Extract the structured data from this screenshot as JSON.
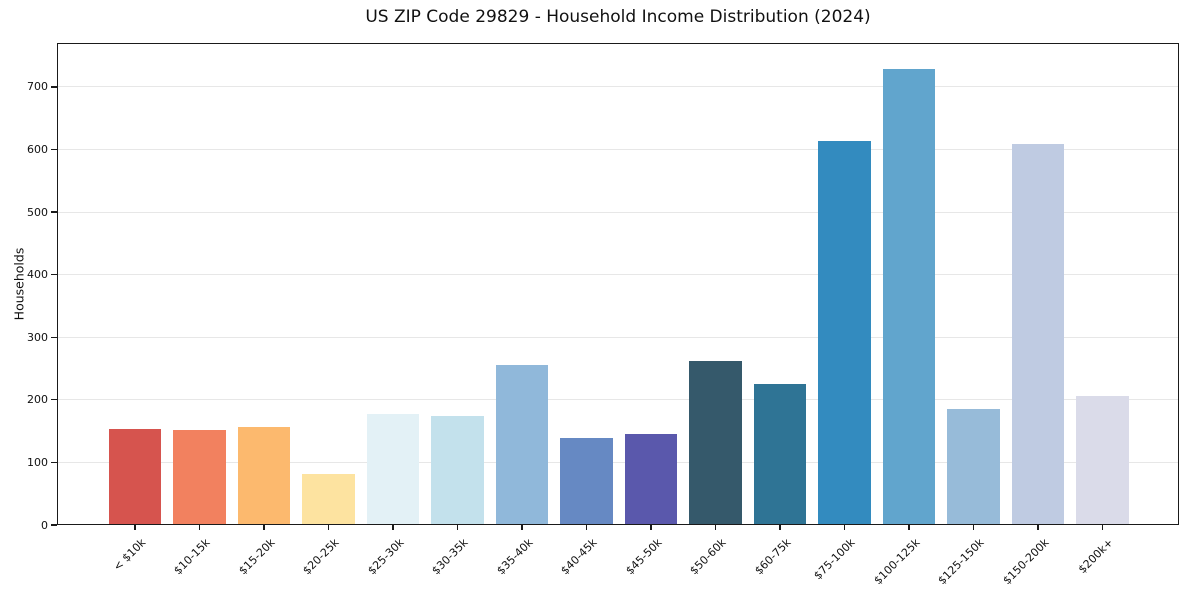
{
  "chart_data": {
    "type": "bar",
    "title": "US ZIP Code 29829 - Household Income Distribution (2024)",
    "xlabel": "",
    "ylabel": "Households",
    "categories": [
      "< $10k",
      "$10-15k",
      "$15-20k",
      "$20-25k",
      "$25-30k",
      "$30-35k",
      "$35-40k",
      "$40-45k",
      "$45-50k",
      "$50-60k",
      "$60-75k",
      "$75-100k",
      "$100-125k",
      "$125-150k",
      "$150-200k",
      "$200k+"
    ],
    "values": [
      154,
      152,
      156,
      82,
      178,
      174,
      256,
      139,
      145,
      262,
      225,
      613,
      728,
      186,
      608,
      206
    ],
    "bar_colors": [
      "#d6544e",
      "#f2815f",
      "#fcb96e",
      "#fde3a0",
      "#e3f1f6",
      "#c3e1ec",
      "#90b8da",
      "#6689c3",
      "#5a58ac",
      "#35596b",
      "#2f7495",
      "#338bbf",
      "#61a5cd",
      "#97bbd9",
      "#bfcbe2",
      "#dadbe9"
    ],
    "yticks": [
      0,
      100,
      200,
      300,
      400,
      500,
      600,
      700
    ],
    "ylim": [
      0,
      770
    ],
    "grid": "horizontal",
    "legend": "none",
    "tick_rotation_deg": 45
  },
  "theme": {
    "background": "#ffffff",
    "grid_color": "#e7e7e7",
    "spine_color": "#1a1a1a",
    "text_color": "#111111"
  }
}
